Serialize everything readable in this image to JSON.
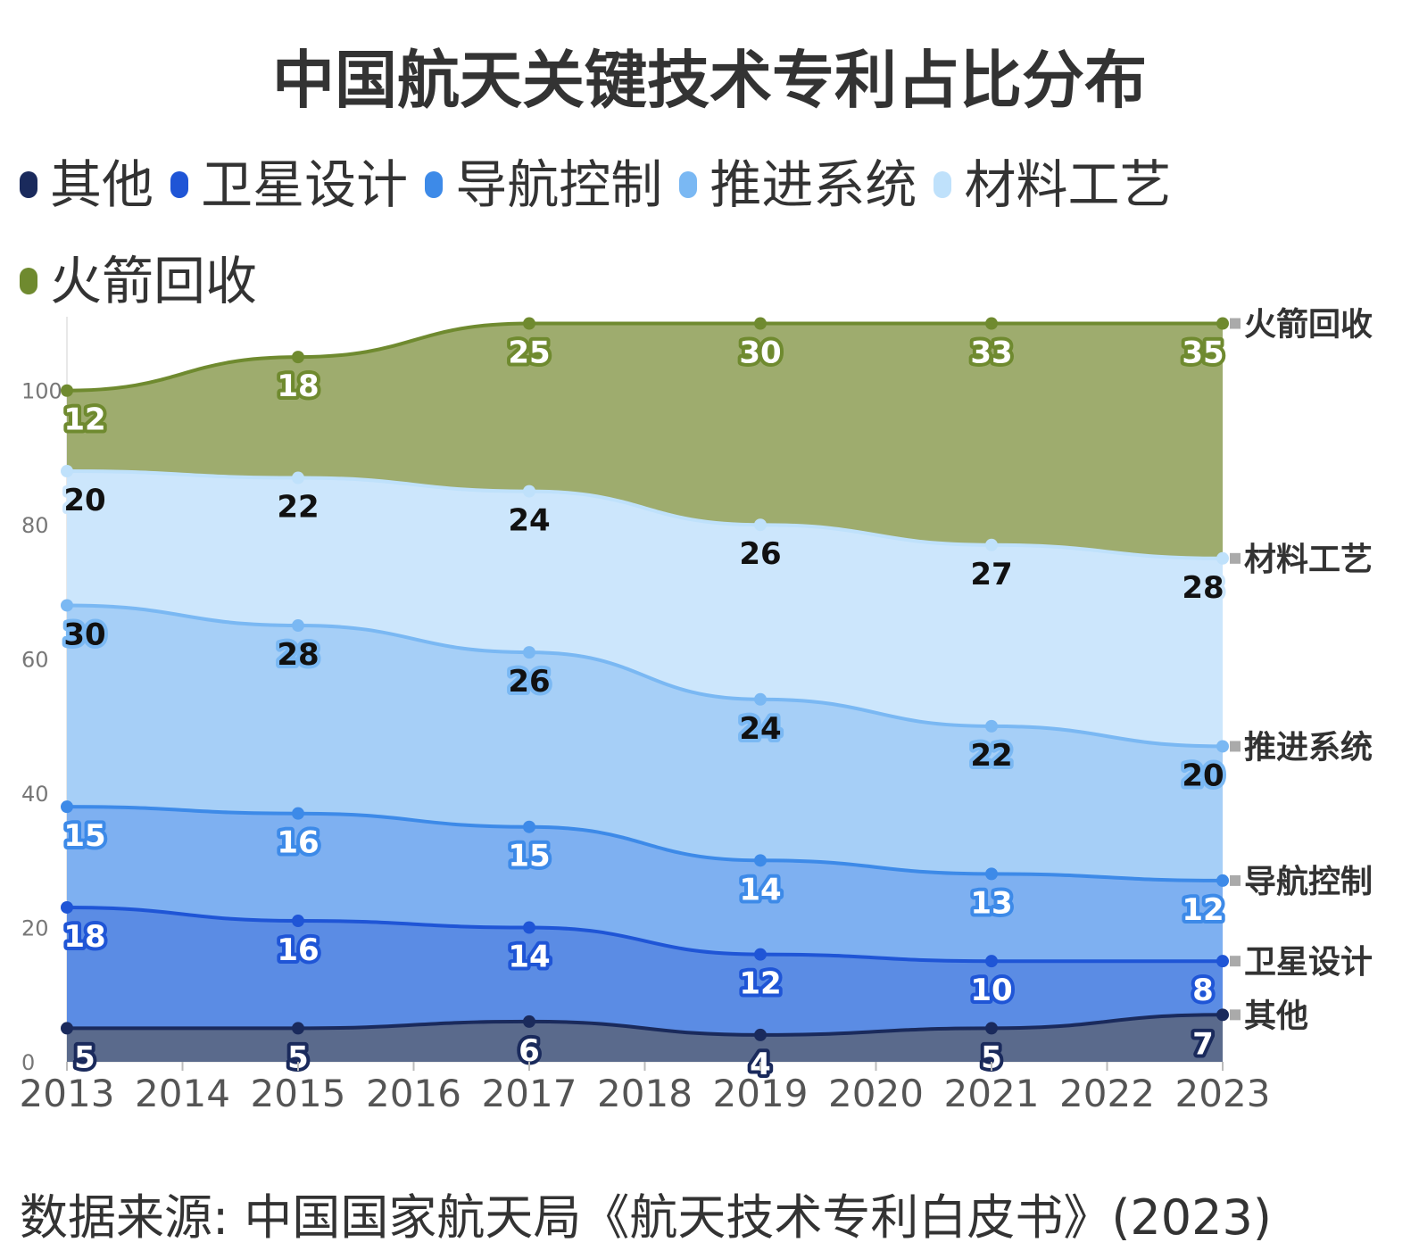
{
  "chart_data": {
    "type": "area",
    "stacked": true,
    "title": "中国航天关键技术专利占比分布",
    "source": "数据来源: 中国国家航天局《航天技术专利白皮书》(2023)",
    "x_ticks": [
      "2013",
      "2014",
      "2015",
      "2016",
      "2017",
      "2018",
      "2019",
      "2020",
      "2021",
      "2022",
      "2023"
    ],
    "x": [
      2013,
      2015,
      2017,
      2019,
      2021,
      2023
    ],
    "y_ticks": [
      0,
      20,
      40,
      60,
      80,
      100
    ],
    "ylim": [
      0,
      111
    ],
    "legend_position": "top-left",
    "series": [
      {
        "name": "其他",
        "values": [
          5,
          5,
          6,
          4,
          5,
          7
        ],
        "color": "#1a2a5c",
        "fill": "#5a6a8c",
        "label_text": "#ffffff",
        "label_outline": "#1a2a5c"
      },
      {
        "name": "卫星设计",
        "values": [
          18,
          16,
          14,
          12,
          10,
          8
        ],
        "color": "#1f55d6",
        "fill": "#5b8ce4",
        "label_text": "#ffffff",
        "label_outline": "#1f55d6"
      },
      {
        "name": "导航控制",
        "values": [
          15,
          16,
          15,
          14,
          13,
          12
        ],
        "color": "#3d8ae8",
        "fill": "#7eb0f1",
        "label_text": "#ffffff",
        "label_outline": "#3d8ae8"
      },
      {
        "name": "推进系统",
        "values": [
          30,
          28,
          26,
          24,
          22,
          20
        ],
        "color": "#7ab8f3",
        "fill": "#a6cff7",
        "label_text": "#111111",
        "label_outline": "#7ab8f3"
      },
      {
        "name": "材料工艺",
        "values": [
          20,
          22,
          24,
          26,
          27,
          28
        ],
        "color": "#bfe1fb",
        "fill": "#cce6fc",
        "label_text": "#111111",
        "label_outline": "#cce6fc"
      },
      {
        "name": "火箭回收",
        "values": [
          12,
          18,
          25,
          30,
          33,
          35
        ],
        "color": "#6f8a2f",
        "fill": "#9eac6e",
        "label_text": "#ffffff",
        "label_outline": "#6f8a2f"
      }
    ]
  }
}
